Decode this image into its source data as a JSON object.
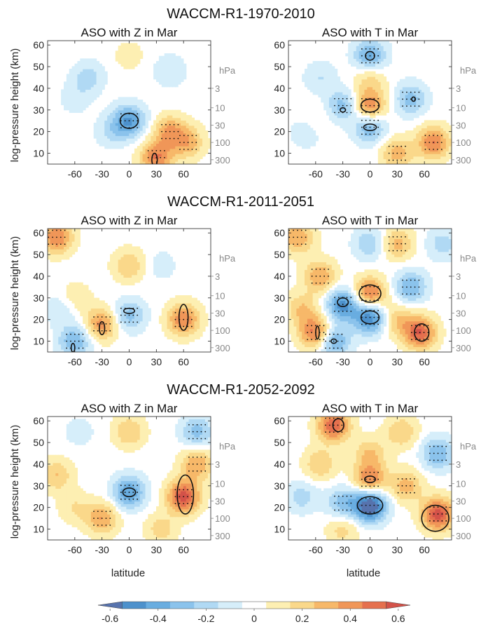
{
  "figure": {
    "panel_titles": [
      "ASO with Z in Mar",
      "ASO with T in  Mar"
    ],
    "ylabel": "log-pressure height (km)",
    "xlabel": "latitude",
    "pressure_unit": "hPa"
  },
  "chart_data": [
    {
      "type": "heatmap",
      "row": 0,
      "col": 0,
      "suptitle": "WACCM-R1-1970-2010",
      "title": "ASO with Z in Mar",
      "x_ticks": [
        -60,
        -30,
        0,
        30,
        60
      ],
      "y_ticks": [
        10,
        20,
        30,
        40,
        50,
        60
      ],
      "xlim": [
        -90,
        90
      ],
      "ylim": [
        5,
        62
      ],
      "pressure_ticks": [
        {
          "p": "3",
          "z": 40
        },
        {
          "p": "10",
          "z": 31
        },
        {
          "p": "30",
          "z": 23
        },
        {
          "p": "100",
          "z": 15
        },
        {
          "p": "300",
          "z": 7
        }
      ],
      "features": [
        {
          "lat": 0,
          "z": 25,
          "v": -0.45
        },
        {
          "lat": -45,
          "z": 45,
          "v": -0.2
        },
        {
          "lat": 45,
          "z": 48,
          "v": -0.15
        },
        {
          "lat": -60,
          "z": 35,
          "v": -0.1
        },
        {
          "lat": -20,
          "z": 20,
          "v": -0.15
        },
        {
          "lat": 45,
          "z": 20,
          "v": 0.35
        },
        {
          "lat": 30,
          "z": 8,
          "v": 0.45
        },
        {
          "lat": 65,
          "z": 15,
          "v": 0.3
        },
        {
          "lat": 0,
          "z": 55,
          "v": 0.1
        },
        {
          "lat": -70,
          "z": 12,
          "v": 0.05
        }
      ],
      "contours": [
        {
          "lat": 0,
          "z": 25,
          "w": 10,
          "h": 3.5
        },
        {
          "lat": 28,
          "z": 7,
          "w": 3,
          "h": 3
        }
      ]
    },
    {
      "type": "heatmap",
      "row": 0,
      "col": 1,
      "title": "ASO with T in  Mar",
      "x_ticks": [
        -60,
        -30,
        0,
        30,
        60
      ],
      "y_ticks": [
        10,
        20,
        30,
        40,
        50,
        60
      ],
      "xlim": [
        -90,
        90
      ],
      "ylim": [
        5,
        62
      ],
      "pressure_ticks": [
        {
          "p": "3",
          "z": 40
        },
        {
          "p": "10",
          "z": 31
        },
        {
          "p": "30",
          "z": 23
        },
        {
          "p": "100",
          "z": 15
        },
        {
          "p": "300",
          "z": 7
        }
      ],
      "features": [
        {
          "lat": 0,
          "z": 32,
          "v": 0.45
        },
        {
          "lat": 0,
          "z": 55,
          "v": -0.4
        },
        {
          "lat": 0,
          "z": 22,
          "v": -0.35
        },
        {
          "lat": -30,
          "z": 32,
          "v": -0.3
        },
        {
          "lat": 45,
          "z": 35,
          "v": -0.3
        },
        {
          "lat": -55,
          "z": 45,
          "v": -0.15
        },
        {
          "lat": 70,
          "z": 15,
          "v": 0.45
        },
        {
          "lat": 30,
          "z": 10,
          "v": 0.3
        },
        {
          "lat": -70,
          "z": 20,
          "v": -0.15
        },
        {
          "lat": 0,
          "z": 45,
          "v": 0.2
        },
        {
          "lat": -60,
          "z": 25,
          "v": 0.1
        }
      ],
      "contours": [
        {
          "lat": 0,
          "z": 32,
          "w": 10,
          "h": 3
        },
        {
          "lat": 0,
          "z": 55,
          "w": 5,
          "h": 2
        },
        {
          "lat": 0,
          "z": 22,
          "w": 7,
          "h": 1.5
        },
        {
          "lat": -30,
          "z": 30,
          "w": 3,
          "h": 1
        },
        {
          "lat": 48,
          "z": 35,
          "w": 2,
          "h": 1
        }
      ]
    },
    {
      "type": "heatmap",
      "row": 1,
      "col": 0,
      "suptitle": "WACCM-R1-2011-2051",
      "title": "ASO with Z in Mar",
      "x_ticks": [
        -60,
        -30,
        0,
        30,
        60
      ],
      "y_ticks": [
        10,
        20,
        30,
        40,
        50,
        60
      ],
      "xlim": [
        -90,
        90
      ],
      "ylim": [
        5,
        62
      ],
      "pressure_ticks": [
        {
          "p": "3",
          "z": 40
        },
        {
          "p": "10",
          "z": 31
        },
        {
          "p": "30",
          "z": 23
        },
        {
          "p": "100",
          "z": 15
        },
        {
          "p": "300",
          "z": 7
        }
      ],
      "features": [
        {
          "lat": -80,
          "z": 58,
          "v": 0.45
        },
        {
          "lat": 0,
          "z": 22,
          "v": -0.3
        },
        {
          "lat": 60,
          "z": 20,
          "v": 0.45
        },
        {
          "lat": -30,
          "z": 18,
          "v": 0.4
        },
        {
          "lat": -60,
          "z": 10,
          "v": -0.35
        },
        {
          "lat": 0,
          "z": 45,
          "v": 0.25
        },
        {
          "lat": -60,
          "z": 30,
          "v": 0.15
        },
        {
          "lat": 35,
          "z": 45,
          "v": -0.1
        },
        {
          "lat": -75,
          "z": 25,
          "v": -0.15
        }
      ],
      "contours": [
        {
          "lat": 0,
          "z": 24,
          "w": 6,
          "h": 1.2
        },
        {
          "lat": -30,
          "z": 16,
          "w": 3,
          "h": 3
        },
        {
          "lat": 60,
          "z": 21,
          "w": 5,
          "h": 6
        },
        {
          "lat": -62,
          "z": 7,
          "w": 2,
          "h": 2
        }
      ]
    },
    {
      "type": "heatmap",
      "row": 1,
      "col": 1,
      "title": "ASO with T in  Mar",
      "x_ticks": [
        -60,
        -30,
        0,
        30,
        60
      ],
      "y_ticks": [
        10,
        20,
        30,
        40,
        50,
        60
      ],
      "xlim": [
        -90,
        90
      ],
      "ylim": [
        5,
        62
      ],
      "pressure_ticks": [
        {
          "p": "3",
          "z": 40
        },
        {
          "p": "10",
          "z": 31
        },
        {
          "p": "30",
          "z": 23
        },
        {
          "p": "100",
          "z": 15
        },
        {
          "p": "300",
          "z": 7
        }
      ],
      "features": [
        {
          "lat": 0,
          "z": 32,
          "v": 0.5
        },
        {
          "lat": 0,
          "z": 21,
          "v": -0.55
        },
        {
          "lat": -30,
          "z": 27,
          "v": -0.5
        },
        {
          "lat": 55,
          "z": 14,
          "v": 0.55
        },
        {
          "lat": -60,
          "z": 14,
          "v": 0.5
        },
        {
          "lat": -40,
          "z": 10,
          "v": -0.4
        },
        {
          "lat": 45,
          "z": 35,
          "v": -0.35
        },
        {
          "lat": -55,
          "z": 40,
          "v": 0.35
        },
        {
          "lat": -80,
          "z": 58,
          "v": 0.35
        },
        {
          "lat": 30,
          "z": 55,
          "v": 0.3
        },
        {
          "lat": 0,
          "z": 55,
          "v": -0.25
        },
        {
          "lat": 80,
          "z": 55,
          "v": -0.2
        },
        {
          "lat": -75,
          "z": 25,
          "v": 0.25
        },
        {
          "lat": 30,
          "z": 20,
          "v": 0.25
        }
      ],
      "contours": [
        {
          "lat": 0,
          "z": 32,
          "w": 12,
          "h": 4
        },
        {
          "lat": 0,
          "z": 21,
          "w": 10,
          "h": 3
        },
        {
          "lat": -30,
          "z": 28,
          "w": 6,
          "h": 2
        },
        {
          "lat": 57,
          "z": 14,
          "w": 8,
          "h": 4
        },
        {
          "lat": -58,
          "z": 14,
          "w": 2,
          "h": 3
        },
        {
          "lat": -40,
          "z": 10,
          "w": 3,
          "h": 1
        }
      ]
    },
    {
      "type": "heatmap",
      "row": 2,
      "col": 0,
      "suptitle": "WACCM-R1-2052-2092",
      "title": "ASO with Z in Mar",
      "x_ticks": [
        -60,
        -30,
        0,
        30,
        60
      ],
      "y_ticks": [
        10,
        20,
        30,
        40,
        50,
        60
      ],
      "xlim": [
        -90,
        90
      ],
      "ylim": [
        5,
        62
      ],
      "pressure_ticks": [
        {
          "p": "3",
          "z": 40
        },
        {
          "p": "10",
          "z": 31
        },
        {
          "p": "30",
          "z": 23
        },
        {
          "p": "100",
          "z": 15
        },
        {
          "p": "300",
          "z": 7
        }
      ],
      "features": [
        {
          "lat": 0,
          "z": 27,
          "v": -0.45
        },
        {
          "lat": 60,
          "z": 25,
          "v": 0.6
        },
        {
          "lat": 75,
          "z": 40,
          "v": 0.35
        },
        {
          "lat": -30,
          "z": 15,
          "v": 0.35
        },
        {
          "lat": -80,
          "z": 35,
          "v": 0.25
        },
        {
          "lat": 0,
          "z": 55,
          "v": 0.25
        },
        {
          "lat": 75,
          "z": 55,
          "v": -0.3
        },
        {
          "lat": -55,
          "z": 55,
          "v": -0.1
        },
        {
          "lat": -60,
          "z": 20,
          "v": 0.15
        },
        {
          "lat": 35,
          "z": 10,
          "v": 0.2
        }
      ],
      "contours": [
        {
          "lat": 0,
          "z": 27,
          "w": 7,
          "h": 2
        },
        {
          "lat": 62,
          "z": 26,
          "w": 9,
          "h": 9
        }
      ]
    },
    {
      "type": "heatmap",
      "row": 2,
      "col": 1,
      "title": "ASO with T in  Mar",
      "x_ticks": [
        -60,
        -30,
        0,
        30,
        60
      ],
      "y_ticks": [
        10,
        20,
        30,
        40,
        50,
        60
      ],
      "xlim": [
        -90,
        90
      ],
      "ylim": [
        5,
        62
      ],
      "pressure_ticks": [
        {
          "p": "3",
          "z": 40
        },
        {
          "p": "10",
          "z": 31
        },
        {
          "p": "30",
          "z": 23
        },
        {
          "p": "100",
          "z": 15
        },
        {
          "p": "300",
          "z": 7
        }
      ],
      "features": [
        {
          "lat": 0,
          "z": 21,
          "v": -0.7
        },
        {
          "lat": 0,
          "z": 33,
          "v": 0.45
        },
        {
          "lat": -40,
          "z": 58,
          "v": 0.55
        },
        {
          "lat": 75,
          "z": 17,
          "v": 0.6
        },
        {
          "lat": -30,
          "z": 22,
          "v": -0.3
        },
        {
          "lat": 75,
          "z": 45,
          "v": -0.35
        },
        {
          "lat": -75,
          "z": 25,
          "v": -0.2
        },
        {
          "lat": 40,
          "z": 30,
          "v": 0.3
        },
        {
          "lat": -55,
          "z": 40,
          "v": 0.25
        },
        {
          "lat": 0,
          "z": 45,
          "v": 0.25
        },
        {
          "lat": -30,
          "z": 10,
          "v": 0.2
        },
        {
          "lat": 35,
          "z": 55,
          "v": 0.25
        }
      ],
      "contours": [
        {
          "lat": 0,
          "z": 21,
          "w": 14,
          "h": 4
        },
        {
          "lat": 0,
          "z": 33,
          "w": 6,
          "h": 1.5
        },
        {
          "lat": -35,
          "z": 58,
          "w": 6,
          "h": 3
        },
        {
          "lat": 72,
          "z": 15,
          "w": 15,
          "h": 6
        }
      ]
    }
  ],
  "colorbar": {
    "ticks": [
      "-0.6",
      "-0.4",
      "-0.2",
      "0",
      "0.2",
      "0.4",
      "0.6"
    ],
    "levels": [
      -0.65,
      -0.55,
      -0.45,
      -0.35,
      -0.25,
      -0.15,
      -0.05,
      0.05,
      0.15,
      0.25,
      0.35,
      0.45,
      0.55,
      0.65
    ],
    "colors": [
      "#5773ad",
      "#4d91cc",
      "#69ade0",
      "#8bc3ec",
      "#b0d9f4",
      "#d6eefa",
      "#ffffff",
      "#fdefb2",
      "#fad88a",
      "#f7b869",
      "#f09658",
      "#e5704e",
      "#d35249"
    ]
  }
}
